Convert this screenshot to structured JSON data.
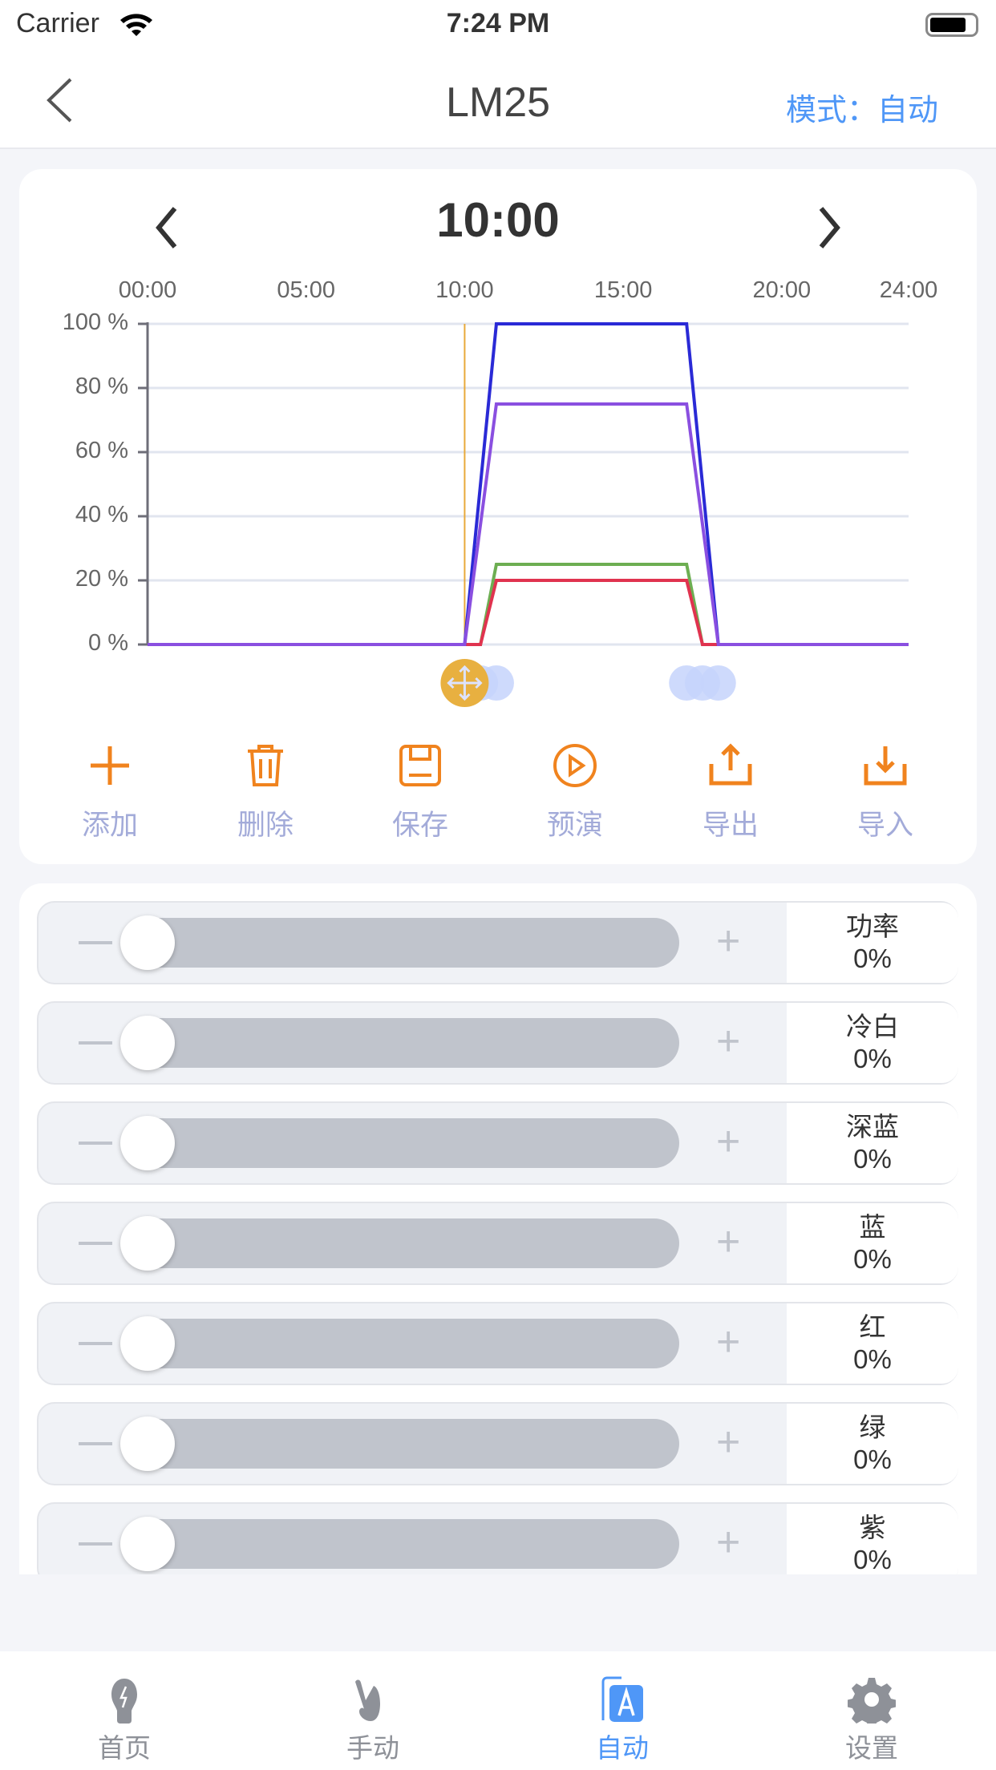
{
  "status_bar": {
    "carrier": "Carrier",
    "time": "7:24 PM"
  },
  "nav": {
    "title": "LM25",
    "mode_label": "模式：自动"
  },
  "schedule": {
    "current_time": "10:00",
    "x_ticks": [
      "00:00",
      "05:00",
      "10:00",
      "15:00",
      "20:00",
      "24:00"
    ],
    "y_ticks": [
      "100 %",
      "80 %",
      "60 %",
      "40 %",
      "20 %",
      "0 %"
    ]
  },
  "chart_data": {
    "type": "line",
    "x_unit": "hour",
    "xlim": [
      0,
      24
    ],
    "ylim": [
      0,
      100
    ],
    "grid": true,
    "cursor_time": 10,
    "handle_times": [
      10,
      10.5,
      11,
      17,
      17.5,
      18
    ],
    "colors": {
      "cursor": "#e8a93a",
      "handle": "#c5d3fb"
    },
    "series": [
      {
        "color": "#6dae52",
        "x": [
          0,
          10,
          10.5,
          11,
          17,
          17.5,
          24
        ],
        "y": [
          0,
          0,
          0,
          25,
          25,
          0,
          0
        ]
      },
      {
        "color": "#e0334f",
        "x": [
          0,
          10,
          10.5,
          11,
          17,
          17.5,
          24
        ],
        "y": [
          0,
          0,
          0,
          20,
          20,
          0,
          0
        ]
      },
      {
        "color": "#2a2ad6",
        "x": [
          0,
          10,
          11,
          17,
          18,
          24
        ],
        "y": [
          0,
          0,
          100,
          100,
          0,
          0
        ]
      },
      {
        "color": "#8a4fe0",
        "x": [
          0,
          10,
          11,
          17,
          18,
          24
        ],
        "y": [
          0,
          0,
          75,
          75,
          0,
          0
        ]
      }
    ]
  },
  "toolbar": [
    {
      "label": "添加",
      "icon": "plus-icon"
    },
    {
      "label": "删除",
      "icon": "trash-icon"
    },
    {
      "label": "保存",
      "icon": "save-icon"
    },
    {
      "label": "预演",
      "icon": "play-icon"
    },
    {
      "label": "导出",
      "icon": "export-icon"
    },
    {
      "label": "导入",
      "icon": "import-icon"
    }
  ],
  "channels": [
    {
      "name": "功率",
      "value": "0%",
      "level": 0
    },
    {
      "name": "冷白",
      "value": "0%",
      "level": 0
    },
    {
      "name": "深蓝",
      "value": "0%",
      "level": 0
    },
    {
      "name": "蓝",
      "value": "0%",
      "level": 0
    },
    {
      "name": "红",
      "value": "0%",
      "level": 0
    },
    {
      "name": "绿",
      "value": "0%",
      "level": 0
    },
    {
      "name": "紫",
      "value": "0%",
      "level": 0
    }
  ],
  "tabs": [
    {
      "label": "首页",
      "icon": "bulb-icon",
      "active": false
    },
    {
      "label": "手动",
      "icon": "hand-icon",
      "active": false
    },
    {
      "label": "自动",
      "icon": "auto-icon",
      "active": true
    },
    {
      "label": "设置",
      "icon": "gear-icon",
      "active": false
    }
  ],
  "colors": {
    "accent": "#4f97f7",
    "tool": "#f0831e",
    "tool_label": "#a3abd9"
  }
}
